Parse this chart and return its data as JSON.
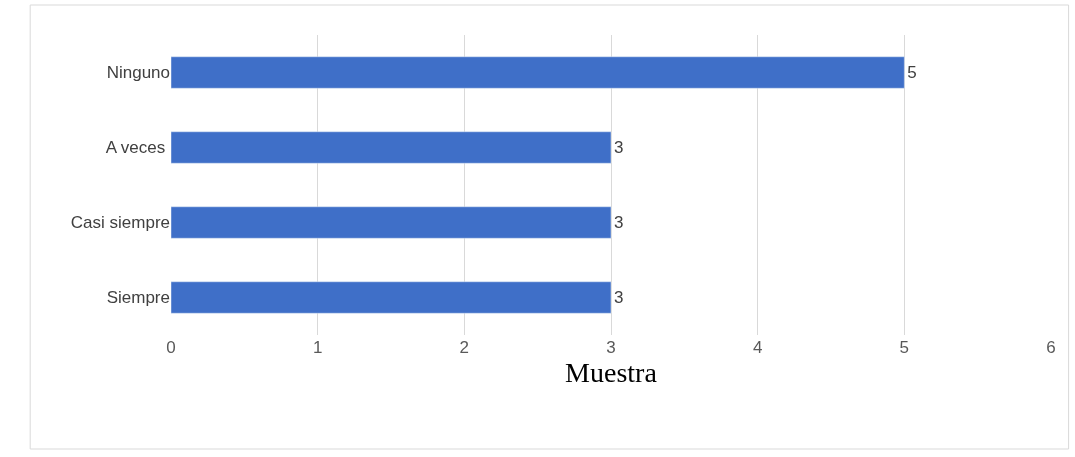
{
  "chart_data": {
    "type": "bar",
    "orientation": "horizontal",
    "xlabel": "Muestra",
    "categories": [
      "Ninguno",
      "A veces ",
      "Casi siempre",
      "Siempre"
    ],
    "values": [
      5,
      3,
      3,
      3
    ],
    "color": "#3f6fc8",
    "xlim": [
      0,
      6
    ],
    "xticks": [
      0,
      1,
      2,
      3,
      4,
      5,
      6
    ],
    "grid": "x",
    "data_labels": true
  }
}
